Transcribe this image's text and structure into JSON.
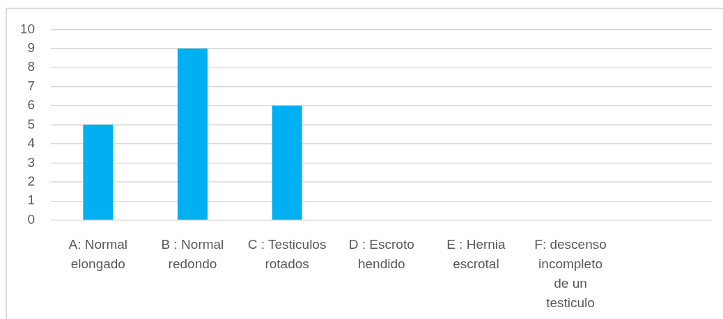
{
  "chart_data": {
    "type": "bar",
    "categories": [
      "A: Normal elongado",
      "B : Normal redondo",
      "C : Testiculos rotados",
      "D : Escroto hendido",
      "E : Hernia escrotal",
      "F: descenso incompleto de un testiculo",
      null
    ],
    "values": [
      5,
      9,
      6,
      0,
      0,
      0,
      null
    ],
    "color": "#00b0f0",
    "ylim": [
      0,
      10
    ],
    "yticks": [
      0,
      1,
      2,
      3,
      4,
      5,
      6,
      7,
      8,
      9,
      10
    ],
    "grid": "y"
  }
}
